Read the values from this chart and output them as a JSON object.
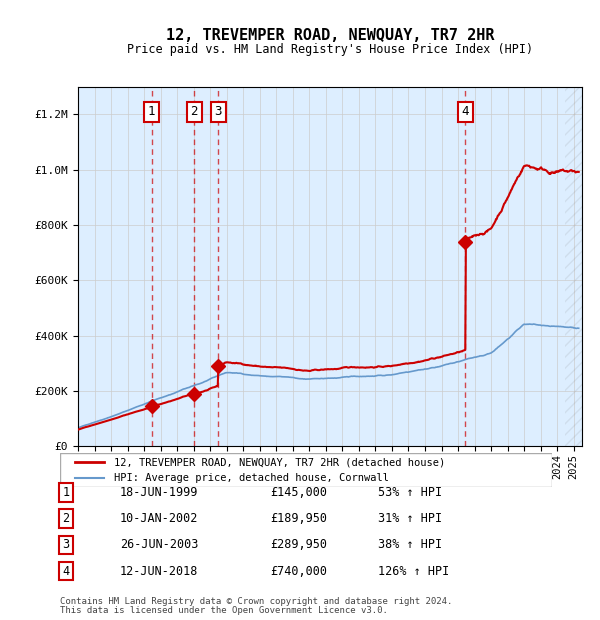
{
  "title": "12, TREVEMPER ROAD, NEWQUAY, TR7 2HR",
  "subtitle": "Price paid vs. HM Land Registry's House Price Index (HPI)",
  "legend_label_red": "12, TREVEMPER ROAD, NEWQUAY, TR7 2HR (detached house)",
  "legend_label_blue": "HPI: Average price, detached house, Cornwall",
  "footer1": "Contains HM Land Registry data © Crown copyright and database right 2024.",
  "footer2": "This data is licensed under the Open Government Licence v3.0.",
  "transactions": [
    {
      "num": 1,
      "date": "18-JUN-1999",
      "price": 145000,
      "year": 1999.46,
      "pct": "53%",
      "dir": "↑"
    },
    {
      "num": 2,
      "date": "10-JAN-2002",
      "price": 189950,
      "year": 2002.03,
      "pct": "31%",
      "dir": "↑"
    },
    {
      "num": 3,
      "date": "26-JUN-2003",
      "price": 289950,
      "year": 2003.48,
      "pct": "38%",
      "dir": "↑"
    },
    {
      "num": 4,
      "date": "12-JUN-2018",
      "price": 740000,
      "year": 2018.44,
      "pct": "126%",
      "dir": "↑"
    }
  ],
  "red_color": "#cc0000",
  "blue_color": "#6699cc",
  "bg_color": "#ddeeff",
  "plot_bg": "#ffffff",
  "grid_color": "#cccccc",
  "dashed_color": "#cc0000",
  "ylim": [
    0,
    1300000
  ],
  "xlim_start": 1995.0,
  "xlim_end": 2025.5
}
